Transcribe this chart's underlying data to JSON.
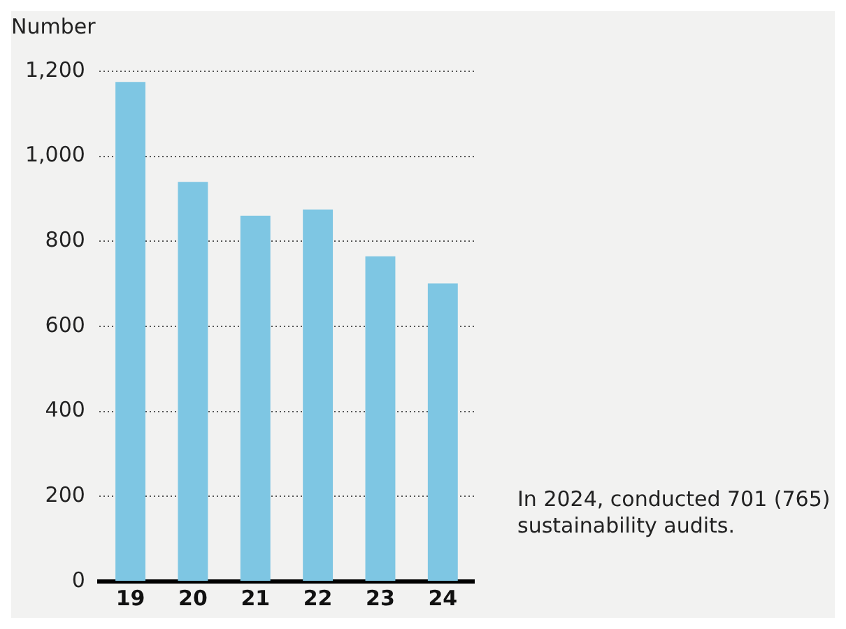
{
  "chart_data": {
    "type": "bar",
    "ylabel": "Number",
    "categories": [
      "19",
      "20",
      "21",
      "22",
      "23",
      "24"
    ],
    "values": [
      1175,
      940,
      860,
      875,
      765,
      701
    ],
    "color": "#7ec6e3",
    "ylim": [
      0,
      1200
    ],
    "yticks": [
      0,
      200,
      400,
      600,
      800,
      {
        "value": 1000,
        "label": "1,000"
      },
      {
        "value": 1200,
        "label": "1,200"
      }
    ],
    "grid": "y",
    "annotations": [
      "In 2024, conducted 701 (765) sustainability audits."
    ]
  }
}
